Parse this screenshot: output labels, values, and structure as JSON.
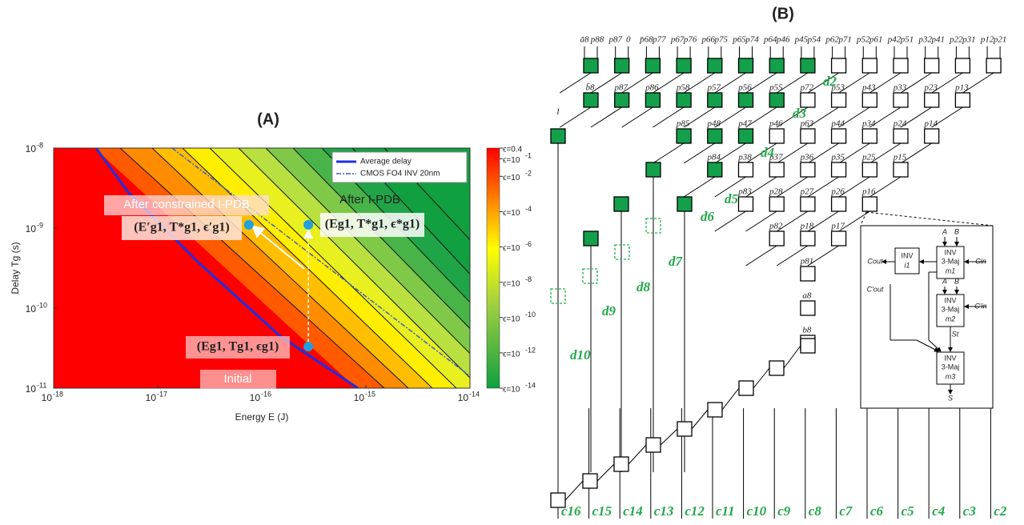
{
  "panel_a": {
    "title": "(A)",
    "x_label": "Energy E (J)",
    "y_label": "Delay Tg (s)",
    "log_x": true,
    "log_y": true,
    "xlim": [
      1e-18,
      1e-14
    ],
    "ylim": [
      1e-11,
      1e-08
    ],
    "xticks": [
      {
        "value": 1e-18,
        "label": "10",
        "exponent": "-18"
      },
      {
        "value": 1e-17,
        "label": "10",
        "exponent": "-17"
      },
      {
        "value": 1e-16,
        "label": "10",
        "exponent": "-16"
      },
      {
        "value": 1e-15,
        "label": "10",
        "exponent": "-15"
      },
      {
        "value": 1e-14,
        "label": "10",
        "exponent": "-14"
      }
    ],
    "yticks": [
      {
        "value": 1e-11,
        "label": "10",
        "exponent": "-11"
      },
      {
        "value": 1e-10,
        "label": "10",
        "exponent": "-10"
      },
      {
        "value": 1e-09,
        "label": "10",
        "exponent": "-9"
      },
      {
        "value": 1e-08,
        "label": "10",
        "exponent": "-8"
      }
    ],
    "colorbar": {
      "clim": [
        0.4,
        1e-14
      ],
      "ticks": [
        {
          "value": 0.4,
          "label": "ϵ=0.4"
        },
        {
          "value": 0.1,
          "label": "ϵ=10",
          "exponent": "-1"
        },
        {
          "value": 0.01,
          "label": "ϵ=10",
          "exponent": "-2"
        },
        {
          "value": 0.0001,
          "label": "ϵ=10",
          "exponent": "-4"
        },
        {
          "value": 1e-06,
          "label": "ϵ=10",
          "exponent": "-6"
        },
        {
          "value": 1e-08,
          "label": "ϵ=10",
          "exponent": "-8"
        },
        {
          "value": 1e-10,
          "label": "ϵ=10",
          "exponent": "-10"
        },
        {
          "value": 1e-12,
          "label": "ϵ=10",
          "exponent": "-12"
        },
        {
          "value": 1e-14,
          "label": "ϵ=10",
          "exponent": "-14"
        }
      ]
    },
    "legend": [
      "Average delay",
      "CMOS FO4 INV 20nm"
    ],
    "points": [
      {
        "name": "Initial",
        "tuple": "(Eg1, Tg1, ϵg1)",
        "x": 2.8e-16,
        "y": 3.3e-11
      },
      {
        "name": "After I-PDB",
        "tuple": "(Eg1, T*g1, ϵ*g1)",
        "x": 2.8e-16,
        "y": 1.1e-09
      },
      {
        "name": "After constrained I-PDB",
        "tuple": "(E′g1, T*g1, ϵ′g1)",
        "x": 7.5e-17,
        "y": 1.1e-09
      }
    ]
  },
  "panel_b": {
    "title": "(B)",
    "top_labels": [
      "ā8",
      "p88",
      "p87",
      "0",
      "p̄68",
      "p77",
      "p67",
      "p76",
      "p66",
      "p75",
      "p65",
      "p74",
      "p64",
      "p46",
      "p45",
      "p54",
      "p62",
      "p71",
      "p52",
      "p61",
      "p42",
      "p51",
      "p32",
      "p41",
      "p22",
      "p31",
      "p12",
      "p21"
    ],
    "one_label": "1",
    "row_labels": [
      [
        "b̄8",
        "p87",
        "p86",
        "p58",
        "p57",
        "p56",
        "p55",
        "p72",
        "p53",
        "p43",
        "p33",
        "p23",
        "p13"
      ],
      [
        "p85",
        "p48",
        "p47",
        "p46",
        "p63",
        "p44",
        "p34",
        "p24",
        "p14"
      ],
      [
        "p84",
        "p38",
        "p37",
        "p36",
        "p35",
        "p25",
        "p15"
      ],
      [
        "p83",
        "p28",
        "p27",
        "p26",
        "p16"
      ],
      [
        "p82",
        "p18",
        "p17"
      ],
      [
        "p81"
      ],
      [
        "a8"
      ],
      [
        "b8"
      ]
    ],
    "d_labels": [
      "d2",
      "d3",
      "d4",
      "d5",
      "d6",
      "d7",
      "d8",
      "d9",
      "d10"
    ],
    "c_labels": [
      "c16",
      "c15",
      "c14",
      "c13",
      "c12",
      "c11",
      "c10",
      "c9",
      "c8",
      "c7",
      "c6",
      "c5",
      "c4",
      "c3",
      "c2"
    ],
    "detail": {
      "a1": "A",
      "b1": "B",
      "inv1": "INV",
      "maj1": "3-Maj",
      "m1": "m1",
      "invi": "INV",
      "i1": "i1",
      "cout": "Cout",
      "cin": "Cin",
      "cout2": "C′out",
      "cin2": "C′in",
      "a2": "A",
      "b2": "B",
      "inv2": "INV",
      "maj2": "3-Maj",
      "m2": "m2",
      "st": "St",
      "inv3": "INV",
      "maj3": "3-Maj",
      "m3": "m3",
      "s": "S"
    }
  }
}
